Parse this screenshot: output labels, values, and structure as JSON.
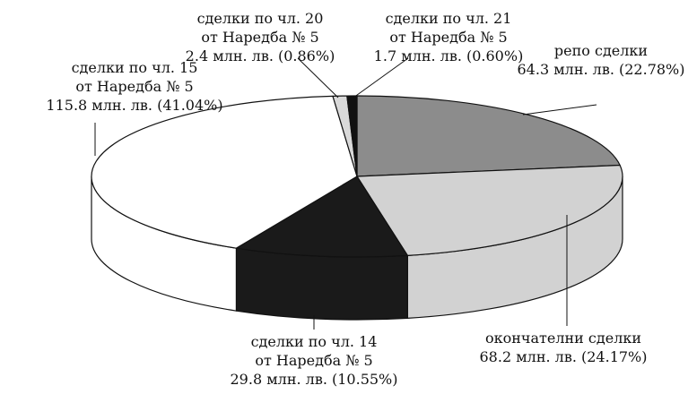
{
  "chart_data": {
    "type": "pie",
    "variant": "3d",
    "title": "",
    "unit": "млн. лв.",
    "slices": [
      {
        "name": "репо сделки",
        "value": 64.3,
        "percent": 22.78,
        "value_label": "64.3 млн. лв. (22.78%)",
        "color": "#8c8c8c",
        "label_lines": [
          "репо сделки",
          "64.3 млн. лв. (22.78%)"
        ]
      },
      {
        "name": "окончателни сделки",
        "value": 68.2,
        "percent": 24.17,
        "value_label": "68.2 млн. лв. (24.17%)",
        "color": "#d2d2d2",
        "label_lines": [
          "окончателни сделки",
          "68.2 млн. лв. (24.17%)"
        ]
      },
      {
        "name": "сделки по чл. 14 от Наредба № 5",
        "value": 29.8,
        "percent": 10.55,
        "value_label": "29.8 млн. лв. (10.55%)",
        "color": "#1a1a1a",
        "label_lines": [
          "сделки по чл. 14",
          "от Наредба № 5",
          "29.8 млн. лв. (10.55%)"
        ]
      },
      {
        "name": "сделки по чл. 15 от Наредба № 5",
        "value": 115.8,
        "percent": 41.04,
        "value_label": "115.8 млн. лв. (41.04%)",
        "color": "#ffffff",
        "label_lines": [
          "сделки по чл. 15",
          "от Наредба № 5",
          "115.8 млн. лв. (41.04%)"
        ]
      },
      {
        "name": "сделки по чл. 20 от Наредба № 5",
        "value": 2.4,
        "percent": 0.86,
        "value_label": "2.4 млн. лв. (0.86%)",
        "color": "#d9d9d9",
        "label_lines": [
          "сделки по чл. 20",
          "от Наредба № 5",
          "2.4 млн. лв. (0.86%)"
        ]
      },
      {
        "name": "сделки по чл. 21 от Наредба № 5",
        "value": 1.7,
        "percent": 0.6,
        "value_label": "1.7 млн. лв. (0.60%)",
        "color": "#111111",
        "label_lines": [
          "сделки по чл. 21",
          "от Наредба № 5",
          "1.7 млн. лв. (0.60%)"
        ]
      }
    ]
  }
}
